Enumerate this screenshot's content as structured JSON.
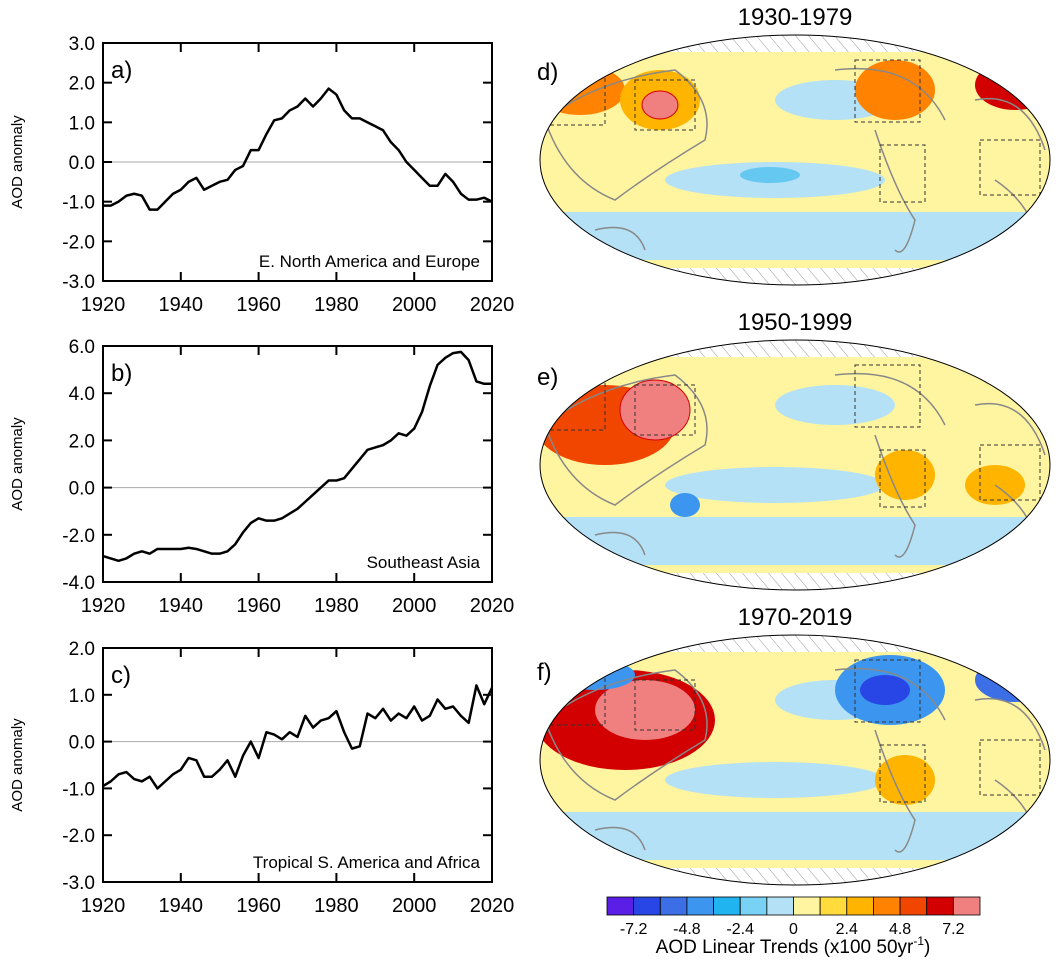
{
  "chart_data": [
    {
      "type": "line",
      "label": "a)",
      "annotation": "E. North America and Europe",
      "ylabel": "AOD anomaly",
      "color": "#000000",
      "hline": 0,
      "x": [
        1920,
        1922,
        1924,
        1926,
        1928,
        1930,
        1932,
        1934,
        1936,
        1938,
        1940,
        1942,
        1944,
        1946,
        1948,
        1950,
        1952,
        1954,
        1956,
        1958,
        1960,
        1962,
        1964,
        1966,
        1968,
        1970,
        1972,
        1974,
        1976,
        1978,
        1980,
        1982,
        1984,
        1986,
        1988,
        1990,
        1992,
        1994,
        1996,
        1998,
        2000,
        2002,
        2004,
        2006,
        2008,
        2010,
        2012,
        2014,
        2016,
        2018,
        2020
      ],
      "values": [
        -1.1,
        -1.1,
        -1.0,
        -0.85,
        -0.8,
        -0.85,
        -1.2,
        -1.2,
        -1.0,
        -0.8,
        -0.7,
        -0.5,
        -0.4,
        -0.7,
        -0.6,
        -0.5,
        -0.45,
        -0.2,
        -0.1,
        0.3,
        0.3,
        0.7,
        1.05,
        1.1,
        1.3,
        1.4,
        1.6,
        1.4,
        1.6,
        1.85,
        1.7,
        1.3,
        1.1,
        1.1,
        1.0,
        0.9,
        0.8,
        0.5,
        0.3,
        0.0,
        -0.2,
        -0.4,
        -0.6,
        -0.6,
        -0.3,
        -0.5,
        -0.8,
        -0.95,
        -0.95,
        -0.9,
        -1.0
      ],
      "xlim": [
        1920,
        2020
      ],
      "xticks": [
        1920,
        1940,
        1960,
        1980,
        2000,
        2020
      ],
      "ylim": [
        -3,
        3
      ],
      "yticks": [
        {
          "value": -3,
          "label": "-3.0"
        },
        {
          "value": -2,
          "label": "-2.0"
        },
        {
          "value": -1,
          "label": "-1.0"
        },
        {
          "value": 0,
          "label": "0.0"
        },
        {
          "value": 1,
          "label": "1.0"
        },
        {
          "value": 2,
          "label": "2.0"
        },
        {
          "value": 3,
          "label": "3.0"
        }
      ]
    },
    {
      "type": "line",
      "label": "b)",
      "annotation": "Southeast Asia",
      "ylabel": "AOD anomaly",
      "color": "#000000",
      "hline": 0,
      "x": [
        1920,
        1922,
        1924,
        1926,
        1928,
        1930,
        1932,
        1934,
        1936,
        1938,
        1940,
        1942,
        1944,
        1946,
        1948,
        1950,
        1952,
        1954,
        1956,
        1958,
        1960,
        1962,
        1964,
        1966,
        1968,
        1970,
        1972,
        1974,
        1976,
        1978,
        1980,
        1982,
        1984,
        1986,
        1988,
        1990,
        1992,
        1994,
        1996,
        1998,
        2000,
        2002,
        2004,
        2006,
        2008,
        2010,
        2012,
        2014,
        2016,
        2018,
        2020
      ],
      "values": [
        -2.9,
        -3.0,
        -3.1,
        -3.0,
        -2.8,
        -2.7,
        -2.8,
        -2.6,
        -2.6,
        -2.6,
        -2.6,
        -2.55,
        -2.6,
        -2.7,
        -2.8,
        -2.8,
        -2.7,
        -2.4,
        -1.9,
        -1.5,
        -1.3,
        -1.4,
        -1.4,
        -1.3,
        -1.1,
        -0.9,
        -0.6,
        -0.3,
        0.0,
        0.3,
        0.3,
        0.4,
        0.8,
        1.2,
        1.6,
        1.7,
        1.8,
        2.0,
        2.3,
        2.2,
        2.5,
        3.2,
        4.3,
        5.2,
        5.5,
        5.7,
        5.75,
        5.4,
        4.5,
        4.4,
        4.4
      ],
      "xlim": [
        1920,
        2020
      ],
      "xticks": [
        1920,
        1940,
        1960,
        1980,
        2000,
        2020
      ],
      "ylim": [
        -4,
        6
      ],
      "yticks": [
        {
          "value": -4,
          "label": "-4.0"
        },
        {
          "value": -2,
          "label": "-2.0"
        },
        {
          "value": 0,
          "label": "0.0"
        },
        {
          "value": 2,
          "label": "2.0"
        },
        {
          "value": 4,
          "label": "4.0"
        },
        {
          "value": 6,
          "label": "6.0"
        }
      ]
    },
    {
      "type": "line",
      "label": "c)",
      "annotation": "Tropical S. America and Africa",
      "ylabel": "AOD anomaly",
      "color": "#000000",
      "hline": 0,
      "x": [
        1920,
        1922,
        1924,
        1926,
        1928,
        1930,
        1932,
        1934,
        1936,
        1938,
        1940,
        1942,
        1944,
        1946,
        1948,
        1950,
        1952,
        1954,
        1956,
        1958,
        1960,
        1962,
        1964,
        1966,
        1968,
        1970,
        1972,
        1974,
        1976,
        1978,
        1980,
        1982,
        1984,
        1986,
        1988,
        1990,
        1992,
        1994,
        1996,
        1998,
        2000,
        2002,
        2004,
        2006,
        2008,
        2010,
        2012,
        2014,
        2016,
        2018,
        2020
      ],
      "values": [
        -0.95,
        -0.85,
        -0.7,
        -0.65,
        -0.8,
        -0.85,
        -0.75,
        -1.0,
        -0.85,
        -0.7,
        -0.6,
        -0.35,
        -0.4,
        -0.75,
        -0.75,
        -0.6,
        -0.4,
        -0.75,
        -0.3,
        0.0,
        -0.35,
        0.2,
        0.15,
        0.05,
        0.2,
        0.1,
        0.55,
        0.3,
        0.45,
        0.5,
        0.65,
        0.2,
        -0.15,
        -0.1,
        0.6,
        0.5,
        0.7,
        0.45,
        0.6,
        0.5,
        0.75,
        0.45,
        0.55,
        0.9,
        0.7,
        0.75,
        0.55,
        0.4,
        1.2,
        0.8,
        1.15
      ],
      "xlim": [
        1920,
        2020
      ],
      "xticks": [
        1920,
        1940,
        1960,
        1980,
        2000,
        2020
      ],
      "ylim": [
        -3,
        2
      ],
      "yticks": [
        {
          "value": -3,
          "label": "-3.0"
        },
        {
          "value": -2,
          "label": "-2.0"
        },
        {
          "value": -1,
          "label": "-1.0"
        },
        {
          "value": 0,
          "label": "0.0"
        },
        {
          "value": 1,
          "label": "1.0"
        },
        {
          "value": 2,
          "label": "2.0"
        }
      ]
    }
  ],
  "maps": [
    {
      "title": "1930-1979",
      "label": "d)"
    },
    {
      "title": "1950-1999",
      "label": "e)"
    },
    {
      "title": "1970-2019",
      "label": "f)"
    }
  ],
  "colorbar": {
    "colors": [
      "#5a1ee6",
      "#2846e6",
      "#3c6ee6",
      "#3c96f0",
      "#20b4f0",
      "#78d2f5",
      "#b4e1f5",
      "#fff5a0",
      "#ffdc3c",
      "#ffb400",
      "#ff8200",
      "#f04600",
      "#d20000",
      "#f08080"
    ],
    "lim": [
      -8.4,
      8.4
    ],
    "ticks": [
      -7.2,
      -4.8,
      -2.4,
      0,
      2.4,
      4.8,
      7.2
    ],
    "label": {
      "text": "AOD Linear Trends (x100 50yr",
      "sup": "-1",
      "end": ")"
    }
  }
}
